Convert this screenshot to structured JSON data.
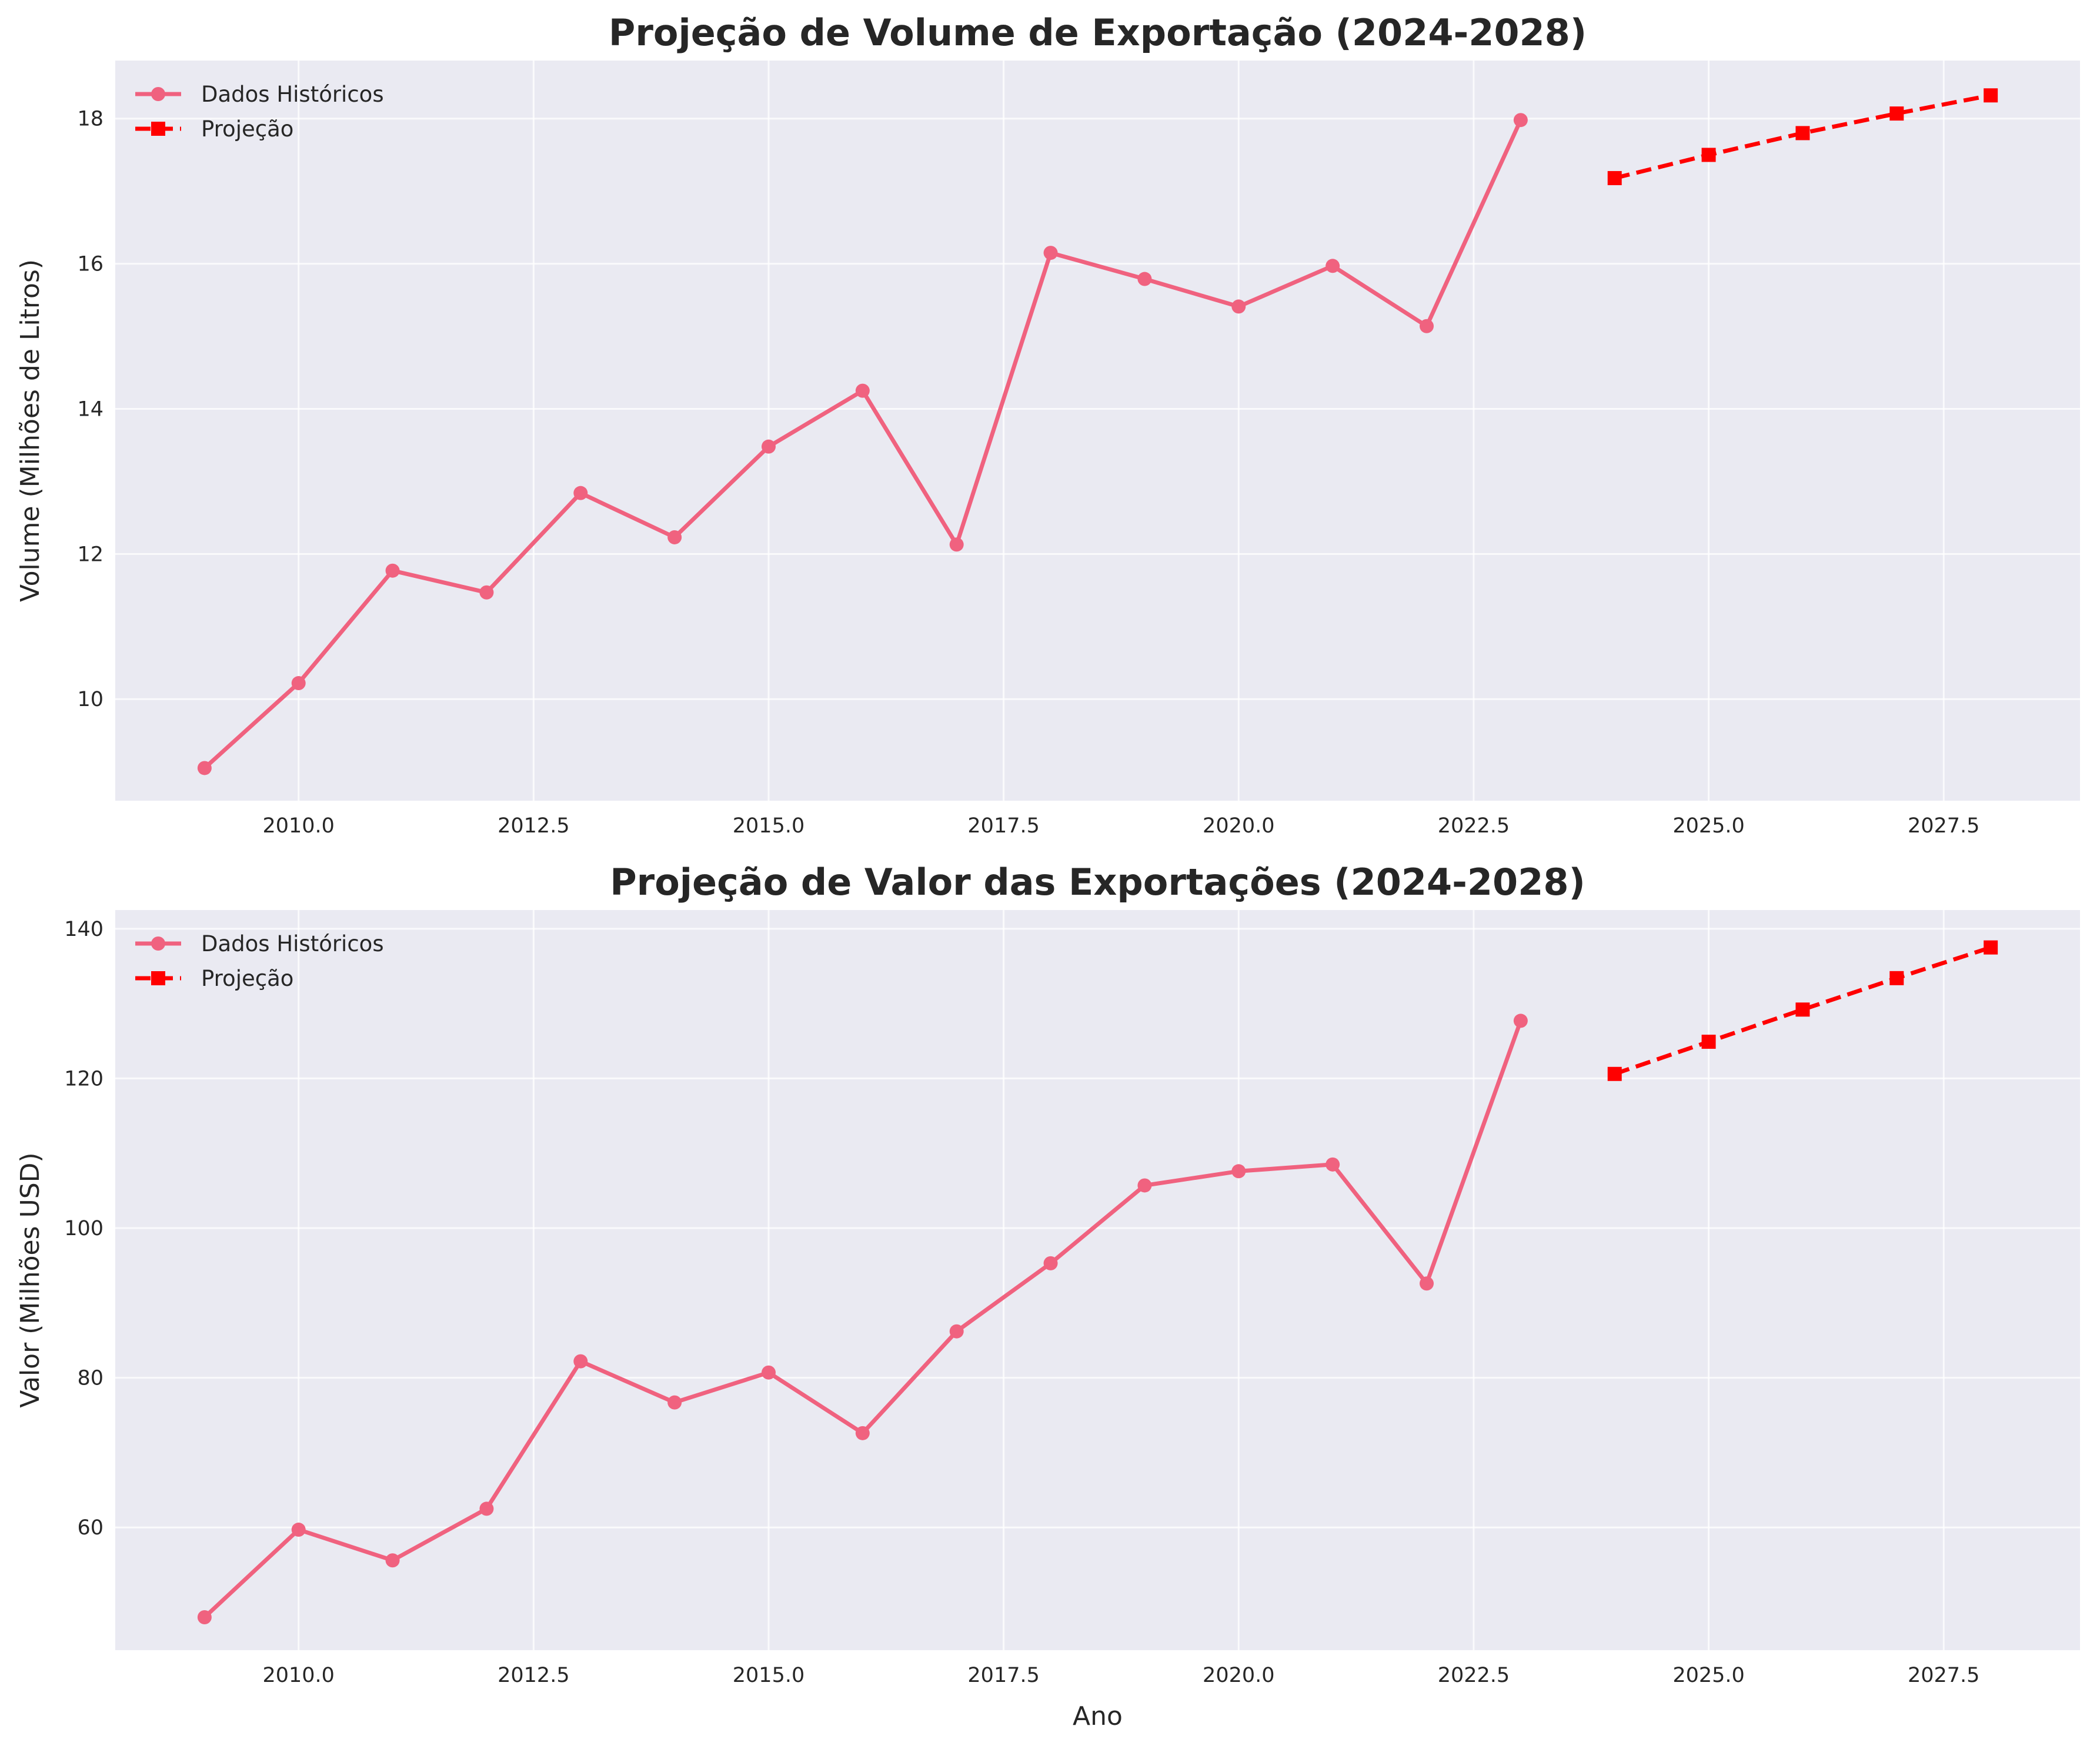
{
  "colors": {
    "historical": "#f0627f",
    "projection": "#ff0000",
    "axes_background": "#eaeaf2",
    "grid": "#ffffff",
    "text": "#262626"
  },
  "chart_data": [
    {
      "type": "line",
      "title": "Projeção de Volume de Exportação (2024-2028)",
      "xlabel": "",
      "ylabel": "Volume (Milhões de Litros)",
      "xlim": [
        2008.05,
        2028.95
      ],
      "ylim": [
        8.6,
        18.8
      ],
      "xticks": [
        2010.0,
        2012.5,
        2015.0,
        2017.5,
        2020.0,
        2022.5,
        2025.0,
        2027.5
      ],
      "xtick_labels": [
        "2010.0",
        "2012.5",
        "2015.0",
        "2017.5",
        "2020.0",
        "2022.5",
        "2025.0",
        "2027.5"
      ],
      "yticks": [
        10,
        12,
        14,
        16,
        18
      ],
      "ytick_labels": [
        "10",
        "12",
        "14",
        "16",
        "18"
      ],
      "grid": true,
      "legend_position": "top-left",
      "series": [
        {
          "name": "Dados Históricos",
          "style": "solid",
          "marker": "circle",
          "x": [
            2009,
            2010,
            2011,
            2012,
            2013,
            2014,
            2015,
            2016,
            2017,
            2018,
            2019,
            2020,
            2021,
            2022,
            2023
          ],
          "y": [
            9.05,
            10.22,
            11.77,
            11.47,
            12.84,
            12.23,
            13.48,
            14.25,
            12.13,
            16.15,
            15.79,
            15.41,
            15.97,
            15.14,
            17.98
          ]
        },
        {
          "name": "Projeção",
          "style": "dashed",
          "marker": "square",
          "x": [
            2024,
            2025,
            2026,
            2027,
            2028
          ],
          "y": [
            17.18,
            17.5,
            17.8,
            18.07,
            18.32
          ]
        }
      ]
    },
    {
      "type": "line",
      "title": "Projeção de Valor das Exportações (2024-2028)",
      "xlabel": "Ano",
      "ylabel": "Valor (Milhões USD)",
      "xlim": [
        2008.05,
        2028.95
      ],
      "ylim": [
        43.6,
        142.5
      ],
      "xticks": [
        2010.0,
        2012.5,
        2015.0,
        2017.5,
        2020.0,
        2022.5,
        2025.0,
        2027.5
      ],
      "xtick_labels": [
        "2010.0",
        "2012.5",
        "2015.0",
        "2017.5",
        "2020.0",
        "2022.5",
        "2025.0",
        "2027.5"
      ],
      "yticks": [
        60,
        80,
        100,
        120,
        140
      ],
      "ytick_labels": [
        "60",
        "80",
        "100",
        "120",
        "140"
      ],
      "grid": true,
      "legend_position": "top-left",
      "series": [
        {
          "name": "Dados Históricos",
          "style": "solid",
          "marker": "circle",
          "x": [
            2009,
            2010,
            2011,
            2012,
            2013,
            2014,
            2015,
            2016,
            2017,
            2018,
            2019,
            2020,
            2021,
            2022,
            2023
          ],
          "y": [
            48.0,
            59.7,
            55.6,
            62.5,
            82.2,
            76.7,
            80.7,
            72.6,
            86.2,
            95.3,
            105.7,
            107.6,
            108.5,
            92.6,
            127.7
          ]
        },
        {
          "name": "Projeção",
          "style": "dashed",
          "marker": "square",
          "x": [
            2024,
            2025,
            2026,
            2027,
            2028
          ],
          "y": [
            120.6,
            124.9,
            129.2,
            133.4,
            137.5
          ]
        }
      ]
    }
  ]
}
